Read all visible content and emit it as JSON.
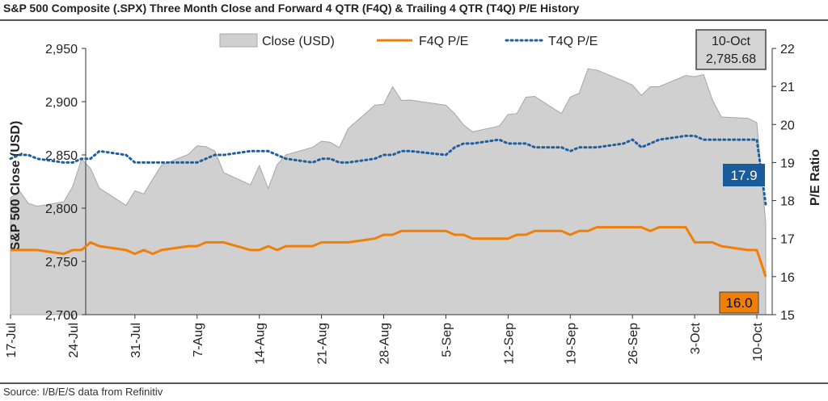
{
  "header": {
    "title": "S&P 500 Composite (.SPX) Three Month Close and Forward 4 QTR (F4Q) & Trailing 4 QTR (T4Q) P/E History"
  },
  "footer": {
    "source": "Source: I/B/E/S data from Refinitiv"
  },
  "colors": {
    "close_fill": "#d0d0d0",
    "close_stroke": "#a6a6a6",
    "f4q": "#f07f09",
    "t4q": "#1f5fa0",
    "t4q_label_bg": "#1a5c9b",
    "f4q_label_bg": "#f07f09",
    "close_label_bg": "#d4d4d4"
  },
  "chart_data": {
    "type": "area",
    "title": "S&P 500 Composite (.SPX) Three Month Close and Forward 4 QTR (F4Q) & Trailing 4 QTR (T4Q) P/E History",
    "x_ticks": [
      "17-Jul",
      "24-Jul",
      "31-Jul",
      "7-Aug",
      "14-Aug",
      "21-Aug",
      "28-Aug",
      "5-Sep",
      "12-Sep",
      "19-Sep",
      "26-Sep",
      "3-Oct",
      "10-Oct"
    ],
    "ylabel_left": "S&P 500 Close (USD)",
    "ylabel_right": "P/E Ratio",
    "ylim_left": [
      2700,
      2950
    ],
    "yticks_left": [
      "2,700",
      "2,750",
      "2,800",
      "2,850",
      "2,900",
      "2,950"
    ],
    "ylim_right": [
      15,
      22
    ],
    "yticks_right": [
      "15",
      "16",
      "17",
      "18",
      "19",
      "20",
      "21",
      "22"
    ],
    "grid": false,
    "legend_position": "top",
    "legend": [
      "Close (USD)",
      "F4Q P/E",
      "T4Q P/E"
    ],
    "dates": [
      "2018-07-17",
      "2018-07-18",
      "2018-07-19",
      "2018-07-20",
      "2018-07-23",
      "2018-07-24",
      "2018-07-25",
      "2018-07-26",
      "2018-07-27",
      "2018-07-30",
      "2018-07-31",
      "2018-08-01",
      "2018-08-02",
      "2018-08-03",
      "2018-08-06",
      "2018-08-07",
      "2018-08-08",
      "2018-08-09",
      "2018-08-10",
      "2018-08-13",
      "2018-08-14",
      "2018-08-15",
      "2018-08-16",
      "2018-08-17",
      "2018-08-20",
      "2018-08-21",
      "2018-08-22",
      "2018-08-23",
      "2018-08-24",
      "2018-08-27",
      "2018-08-28",
      "2018-08-29",
      "2018-08-30",
      "2018-08-31",
      "2018-09-04",
      "2018-09-05",
      "2018-09-06",
      "2018-09-07",
      "2018-09-10",
      "2018-09-11",
      "2018-09-12",
      "2018-09-13",
      "2018-09-14",
      "2018-09-17",
      "2018-09-18",
      "2018-09-19",
      "2018-09-20",
      "2018-09-21",
      "2018-09-24",
      "2018-09-25",
      "2018-09-26",
      "2018-09-27",
      "2018-09-28",
      "2018-10-01",
      "2018-10-02",
      "2018-10-03",
      "2018-10-04",
      "2018-10-05",
      "2018-10-08",
      "2018-10-09",
      "2018-10-10"
    ],
    "series": [
      {
        "name": "Close (USD)",
        "values": [
          2809.6,
          2816.3,
          2804.5,
          2801.8,
          2806.0,
          2820.4,
          2846.1,
          2837.4,
          2818.8,
          2802.6,
          2816.3,
          2813.4,
          2827.2,
          2840.4,
          2850.4,
          2858.5,
          2857.7,
          2853.6,
          2833.3,
          2821.9,
          2839.9,
          2818.4,
          2840.7,
          2850.1,
          2857.1,
          2862.9,
          2861.8,
          2856.9,
          2874.7,
          2896.7,
          2897.5,
          2914.0,
          2901.1,
          2901.5,
          2896.7,
          2888.6,
          2878.1,
          2871.7,
          2877.1,
          2887.9,
          2888.9,
          2904.2,
          2904.9,
          2888.8,
          2904.3,
          2907.9,
          2930.8,
          2929.7,
          2919.4,
          2915.6,
          2905.9,
          2914.0,
          2913.98,
          2924.6,
          2923.4,
          2925.5,
          2901.6,
          2885.6,
          2884.4,
          2880.3,
          2785.68
        ]
      },
      {
        "name": "F4Q P/E",
        "values": [
          16.7,
          16.7,
          16.7,
          16.7,
          16.6,
          16.7,
          16.7,
          16.9,
          16.8,
          16.7,
          16.6,
          16.7,
          16.6,
          16.7,
          16.8,
          16.8,
          16.9,
          16.9,
          16.9,
          16.7,
          16.7,
          16.8,
          16.7,
          16.8,
          16.8,
          16.9,
          16.9,
          16.9,
          16.9,
          17.0,
          17.1,
          17.1,
          17.2,
          17.2,
          17.2,
          17.1,
          17.1,
          17.0,
          17.0,
          17.0,
          17.1,
          17.1,
          17.2,
          17.2,
          17.1,
          17.2,
          17.2,
          17.3,
          17.3,
          17.3,
          17.3,
          17.2,
          17.3,
          17.3,
          16.9,
          16.9,
          16.9,
          16.8,
          16.7,
          16.7,
          16.0
        ]
      },
      {
        "name": "T4Q P/E",
        "values": [
          19.1,
          19.2,
          19.2,
          19.1,
          19.0,
          19.0,
          19.1,
          19.1,
          19.3,
          19.2,
          19.0,
          19.0,
          19.0,
          19.0,
          19.0,
          19.0,
          19.1,
          19.2,
          19.2,
          19.3,
          19.3,
          19.3,
          19.2,
          19.1,
          19.0,
          19.1,
          19.1,
          19.0,
          19.0,
          19.1,
          19.2,
          19.2,
          19.3,
          19.3,
          19.2,
          19.4,
          19.5,
          19.5,
          19.6,
          19.5,
          19.5,
          19.5,
          19.4,
          19.4,
          19.3,
          19.4,
          19.4,
          19.4,
          19.5,
          19.6,
          19.4,
          19.5,
          19.6,
          19.7,
          19.7,
          19.6,
          19.6,
          19.6,
          19.6,
          19.6,
          17.9
        ]
      }
    ],
    "annotations": {
      "close_label": "10-Oct\n2,785.68",
      "t4q_label": "17.9",
      "f4q_label": "16.0"
    }
  }
}
